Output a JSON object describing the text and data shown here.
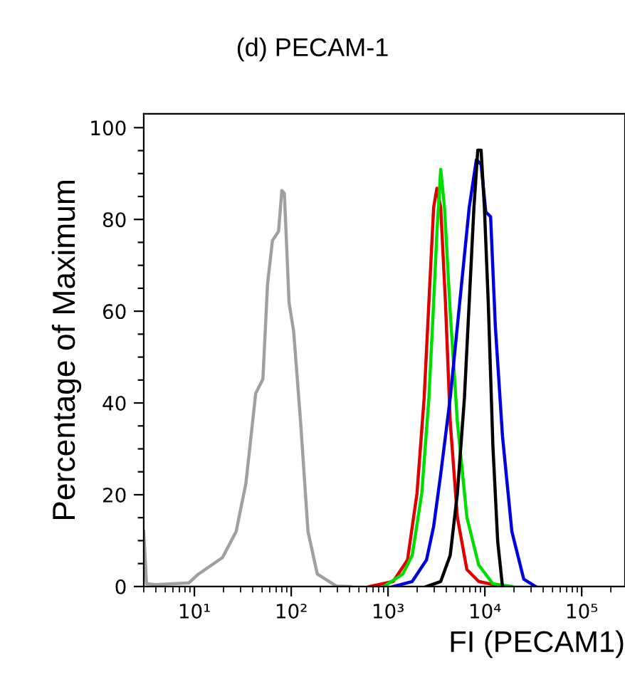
{
  "chart_data": {
    "type": "line",
    "title": "(d) PECAM-1",
    "xlabel": "FI (PECAM1)",
    "ylabel": "Percentage of Maximum",
    "log": "x",
    "xlim": [
      3,
      280000
    ],
    "xticks": [
      {
        "value": 10,
        "label": "10¹"
      },
      {
        "value": 100,
        "label": "10²"
      },
      {
        "value": 1000,
        "label": "10³"
      },
      {
        "value": 10000,
        "label": "10⁴"
      },
      {
        "value": 100000,
        "label": "10⁵"
      }
    ],
    "ylim": [
      0,
      103
    ],
    "yticks": [
      0,
      {
        "value": 5,
        "label": null
      },
      {
        "value": 10,
        "label": null
      },
      {
        "value": 15,
        "label": null
      },
      20,
      {
        "value": 25,
        "label": null
      },
      {
        "value": 30,
        "label": null
      },
      {
        "value": 35,
        "label": null
      },
      40,
      {
        "value": 45,
        "label": null
      },
      {
        "value": 50,
        "label": null
      },
      {
        "value": 55,
        "label": null
      },
      60,
      {
        "value": 65,
        "label": null
      },
      {
        "value": 70,
        "label": null
      },
      {
        "value": 75,
        "label": null
      },
      80,
      {
        "value": 85,
        "label": null
      },
      {
        "value": 90,
        "label": null
      },
      {
        "value": 95,
        "label": null
      },
      100
    ],
    "grid": false,
    "legend": false,
    "series": [
      {
        "color": "#a0a0a0",
        "x": [
          3,
          3.2,
          4,
          8.8,
          11,
          19.5,
          27,
          34,
          43,
          51,
          57,
          64,
          74,
          80,
          85,
          95,
          106,
          125,
          149,
          186,
          292,
          410
        ],
        "values": [
          12,
          0.6,
          0.4,
          0.8,
          2.7,
          6.3,
          12,
          22.4,
          42.1,
          45.2,
          66,
          75.4,
          77.4,
          86.3,
          85.7,
          61.9,
          55.6,
          35.9,
          12,
          2.7,
          0.1,
          0
        ]
      },
      {
        "color": "#e00000",
        "x": [
          644,
          1132,
          1589,
          1991,
          2360,
          2642,
          2958,
          3200,
          3500,
          3917,
          4387,
          5200,
          6520,
          8630,
          15200
        ],
        "values": [
          0,
          1.1,
          5.8,
          20.3,
          41.1,
          61.9,
          82.6,
          86.8,
          82.6,
          61.9,
          35.9,
          15.1,
          3.7,
          1.1,
          0
        ]
      },
      {
        "color": "#00dd00",
        "x": [
          903,
          1419,
          1778,
          2230,
          2642,
          2958,
          3200,
          3500,
          3828,
          4387,
          5200,
          6520,
          8630,
          12100,
          19000
        ],
        "values": [
          0,
          2.7,
          6.8,
          20.3,
          41.1,
          61.9,
          77.4,
          90.9,
          82.6,
          59.8,
          35.9,
          15.1,
          4.7,
          0.6,
          0
        ]
      },
      {
        "color": "#0000dd",
        "x": [
          1132,
          1778,
          2496,
          2958,
          3500,
          4387,
          5500,
          6890,
          8170,
          9140,
          10230,
          11460,
          12830,
          15200,
          19000,
          25200,
          33500
        ],
        "values": [
          0,
          1.1,
          5.8,
          13.1,
          24.5,
          41.1,
          61.9,
          82.6,
          93,
          92,
          81.6,
          80.6,
          56.7,
          32.8,
          12,
          1.6,
          0
        ]
      },
      {
        "color": "#000000",
        "x": [
          2496,
          3500,
          4387,
          5200,
          6150,
          6890,
          7710,
          8450,
          9140,
          9890,
          10840,
          12100,
          13560,
          15200
        ],
        "values": [
          0,
          1.1,
          6.8,
          20.3,
          41.1,
          61.9,
          82.6,
          95.1,
          95.1,
          82.6,
          61.9,
          30.7,
          9.9,
          0
        ]
      }
    ]
  }
}
